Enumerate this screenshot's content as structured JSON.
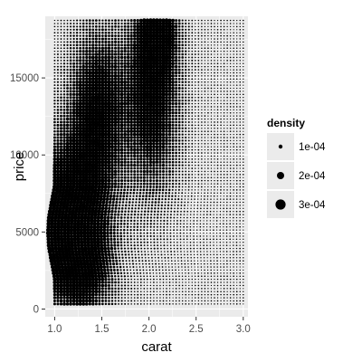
{
  "chart_data": {
    "type": "scatter",
    "title": "",
    "xlabel": "carat",
    "ylabel": "price",
    "x_domain": [
      0.9,
      3.05
    ],
    "y_domain": [
      -500,
      19000
    ],
    "x_ticks": [
      1.0,
      1.5,
      2.0,
      2.5,
      3.0
    ],
    "x_tick_labels": [
      "1.0",
      "1.5",
      "2.0",
      "2.5",
      "3.0"
    ],
    "y_ticks": [
      0,
      5000,
      10000,
      15000
    ],
    "y_tick_labels": [
      "0",
      "5000",
      "10000",
      "15000"
    ],
    "grid": true,
    "grid_x_range": [
      1.0,
      3.0
    ],
    "grid_y_range": [
      330,
      18800
    ],
    "grid_y_step": 200,
    "x_point_count": 60,
    "density_boundary": [
      {
        "price": 330,
        "carat": 1.0
      },
      {
        "price": 1000,
        "carat": 1.0
      },
      {
        "price": 2000,
        "carat": 1.0
      },
      {
        "price": 3000,
        "carat": 0.97
      },
      {
        "price": 4000,
        "carat": 0.94
      },
      {
        "price": 5000,
        "carat": 0.93
      },
      {
        "price": 6000,
        "carat": 0.94
      },
      {
        "price": 7000,
        "carat": 0.97
      },
      {
        "price": 8000,
        "carat": 1.0
      },
      {
        "price": 18800,
        "carat": 1.0
      }
    ],
    "legend": {
      "title": "density",
      "position": "right",
      "items": [
        {
          "label": "1e-04",
          "value": 0.0001
        },
        {
          "label": "2e-04",
          "value": 0.0002
        },
        {
          "label": "3e-04",
          "value": 0.0003
        }
      ]
    },
    "colors": {
      "panel": "#ebebeb",
      "gridline": "#ffffff",
      "point": "#000000",
      "text": "#4d4d4d"
    }
  }
}
